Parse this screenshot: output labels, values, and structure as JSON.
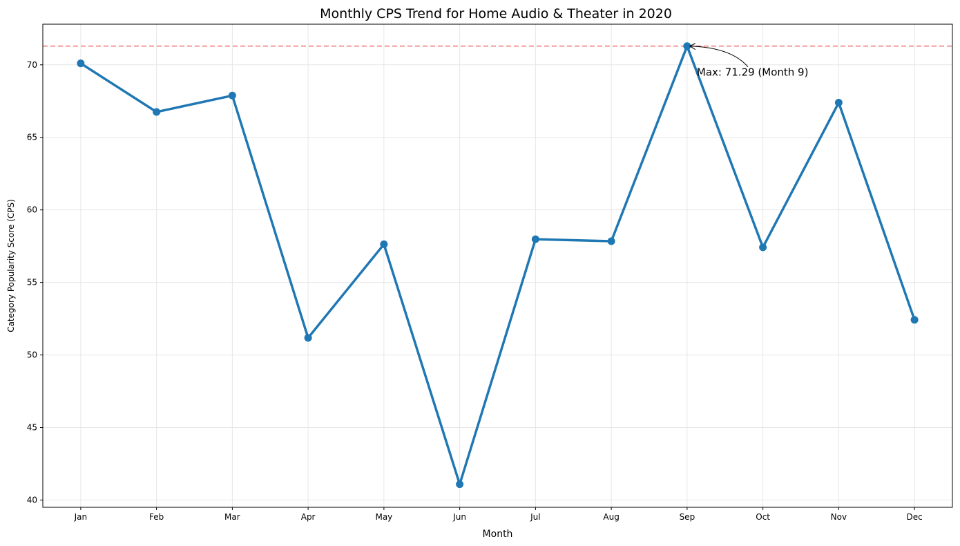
{
  "chart_data": {
    "type": "line",
    "title": "Monthly CPS Trend for Home Audio & Theater in 2020",
    "xlabel": "Month",
    "ylabel": "Category Popularity Score (CPS)",
    "categories": [
      "Jan",
      "Feb",
      "Mar",
      "Apr",
      "May",
      "Jun",
      "Jul",
      "Aug",
      "Sep",
      "Oct",
      "Nov",
      "Dec"
    ],
    "series": [
      {
        "values": [
          70.1,
          66.75,
          67.88,
          51.18,
          57.63,
          41.09,
          57.98,
          57.84,
          71.29,
          57.42,
          67.39,
          52.42
        ],
        "color": "#1f77b4"
      }
    ],
    "ylim": [
      39.5,
      72.8
    ],
    "yticks": [
      40,
      45,
      50,
      55,
      60,
      65,
      70
    ],
    "grid": true,
    "reference_line": {
      "value": 71.29,
      "color": "#f08080",
      "style": "dashed"
    },
    "annotation": {
      "text": "Max: 71.29 (Month 9)",
      "point_index": 8
    }
  }
}
